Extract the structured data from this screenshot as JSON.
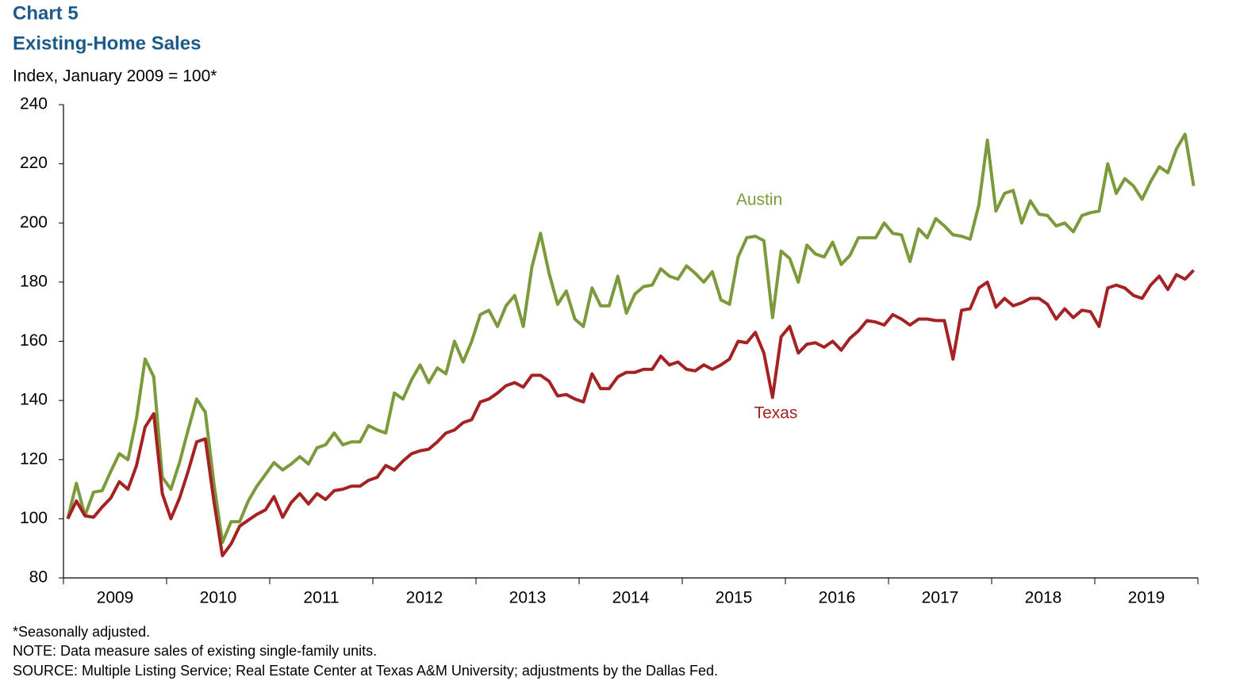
{
  "chart_data": {
    "type": "line",
    "title": "Chart 5",
    "subtitle": "Existing-Home Sales",
    "y_label": "Index, January 2009 = 100*",
    "notes": [
      "*Seasonally adjusted.",
      "NOTE: Data measure sales of existing single-family units.",
      "SOURCE: Multiple Listing Service; Real Estate Center at Texas A&M University; adjustments by the Dallas Fed."
    ],
    "categories": [
      null,
      null,
      null,
      null,
      null,
      null,
      "2009",
      null,
      null,
      null,
      null,
      null,
      null,
      null,
      null,
      null,
      null,
      null,
      "2010",
      null,
      null,
      null,
      null,
      null,
      null,
      null,
      null,
      null,
      null,
      null,
      "2011",
      null,
      null,
      null,
      null,
      null,
      null,
      null,
      null,
      null,
      null,
      null,
      "2012",
      null,
      null,
      null,
      null,
      null,
      null,
      null,
      null,
      null,
      null,
      null,
      "2013",
      null,
      null,
      null,
      null,
      null,
      null,
      null,
      null,
      null,
      null,
      null,
      "2014",
      null,
      null,
      null,
      null,
      null,
      null,
      null,
      null,
      null,
      null,
      null,
      "2015",
      null,
      null,
      null,
      null,
      null,
      null,
      null,
      null,
      null,
      null,
      null,
      "2016",
      null,
      null,
      null,
      null,
      null,
      null,
      null,
      null,
      null,
      null,
      null,
      "2017",
      null,
      null,
      null,
      null,
      null,
      null,
      null,
      null,
      null,
      null,
      null,
      "2018",
      null,
      null,
      null,
      null,
      null,
      null,
      null,
      null,
      null,
      null,
      null,
      "2019",
      null,
      null,
      null,
      null,
      null
    ],
    "series": [
      {
        "name": "Austin",
        "color": "#7b9a3c",
        "values": [
          100,
          112,
          101,
          109,
          109.5,
          116,
          122,
          120,
          134,
          154,
          148,
          114,
          110,
          119,
          130,
          140.5,
          136,
          112,
          92,
          99,
          99,
          106,
          111,
          115,
          119,
          116.5,
          118.5,
          121,
          118.5,
          124,
          125,
          129,
          125,
          126,
          126,
          131.5,
          130,
          129,
          142.5,
          140.5,
          147,
          152,
          146,
          151,
          149,
          160,
          153,
          160,
          169,
          170.5,
          165,
          172,
          175.5,
          165,
          185,
          196.5,
          183,
          172.5,
          177,
          167.5,
          165,
          178,
          172,
          172,
          182,
          169.5,
          176,
          178.5,
          179,
          184.5,
          182,
          181,
          185.5,
          183,
          180,
          183.5,
          174,
          172.5,
          188.5,
          195,
          195.5,
          194,
          168,
          190.5,
          188,
          180,
          192.5,
          189.5,
          188.5,
          193.5,
          186,
          189,
          195,
          195,
          195,
          200,
          196.5,
          196,
          187,
          198,
          195,
          201.5,
          199,
          196,
          195.5,
          194.5,
          206,
          228,
          204,
          210,
          211,
          200,
          207.5,
          203,
          202.5,
          199,
          200,
          197,
          202.5,
          203.5,
          204,
          220,
          210,
          215,
          212.5,
          208,
          214,
          219,
          217,
          225,
          230,
          212.5
        ]
      },
      {
        "name": "Texas",
        "color": "#a52223",
        "values": [
          100,
          106,
          101,
          100.5,
          104,
          107,
          112.5,
          110,
          118,
          131,
          135.5,
          108.5,
          100,
          107,
          116,
          126,
          127,
          106,
          87.5,
          91.5,
          97.5,
          99.5,
          101.5,
          103,
          107.5,
          100.5,
          105.5,
          108.5,
          105,
          108.5,
          106.5,
          109.5,
          110,
          111,
          111,
          113,
          114,
          118,
          116.5,
          119.5,
          122,
          123,
          123.5,
          126,
          129,
          130,
          132.5,
          133.5,
          139.5,
          140.5,
          142.5,
          145,
          146,
          144.5,
          148.5,
          148.5,
          146.5,
          141.5,
          142,
          140.5,
          139.5,
          149,
          144,
          144,
          148,
          149.5,
          149.5,
          150.5,
          150.5,
          155,
          152,
          153,
          150.5,
          150,
          152,
          150.5,
          152,
          154,
          160,
          159.5,
          163,
          156,
          141,
          161.5,
          165,
          156,
          159,
          159.5,
          158,
          160,
          157,
          161,
          163.5,
          167,
          166.5,
          165.5,
          169,
          167.5,
          165.5,
          167.5,
          167.5,
          167,
          167,
          154,
          170.5,
          171,
          178,
          180,
          171.5,
          174.5,
          172,
          173,
          174.5,
          174.5,
          172.5,
          167.5,
          171,
          168,
          170.5,
          170,
          165,
          178,
          179,
          178,
          175.5,
          174.5,
          179,
          182,
          177.5,
          182.5,
          181,
          184
        ]
      }
    ],
    "ylim": [
      80,
      240
    ],
    "yticks": [
      80,
      100,
      120,
      140,
      160,
      180,
      200,
      220,
      240
    ],
    "grid": false
  }
}
